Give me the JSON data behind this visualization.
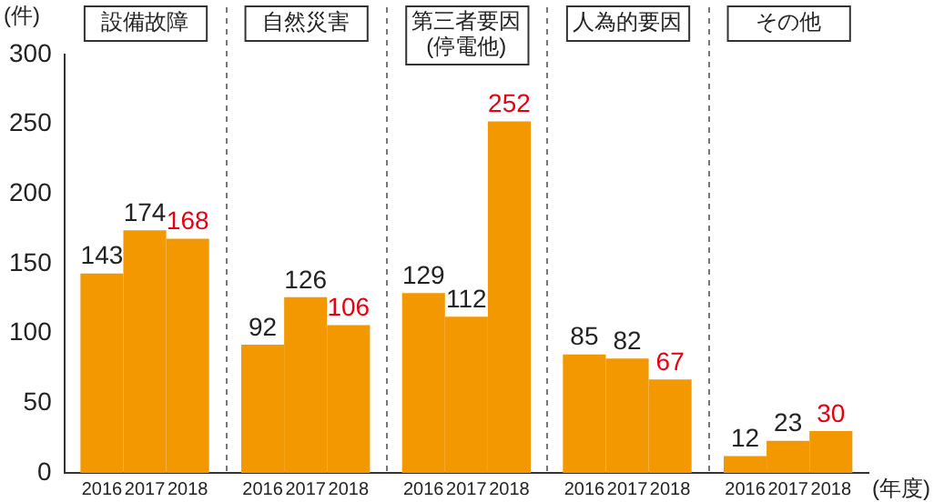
{
  "chart_data": {
    "type": "bar",
    "ylabel": "(件)",
    "xlabel": "(年度)",
    "categories": [
      "設備故障",
      "自然災害",
      "第三者要因\n(停電他)",
      "人為的要因",
      "その他"
    ],
    "series": [
      {
        "name": "2016",
        "color": "#f39800",
        "values": [
          143,
          92,
          129,
          85,
          12
        ]
      },
      {
        "name": "2017",
        "color": "#f39800",
        "values": [
          174,
          126,
          112,
          82,
          23
        ]
      },
      {
        "name": "2018",
        "color": "#f39800",
        "values": [
          168,
          106,
          252,
          67,
          30
        ]
      }
    ],
    "ylim": [
      0,
      300
    ],
    "yticks": [
      0,
      50,
      100,
      150,
      200,
      250,
      300
    ],
    "grid": false,
    "legend": false,
    "data_labels": true
  }
}
